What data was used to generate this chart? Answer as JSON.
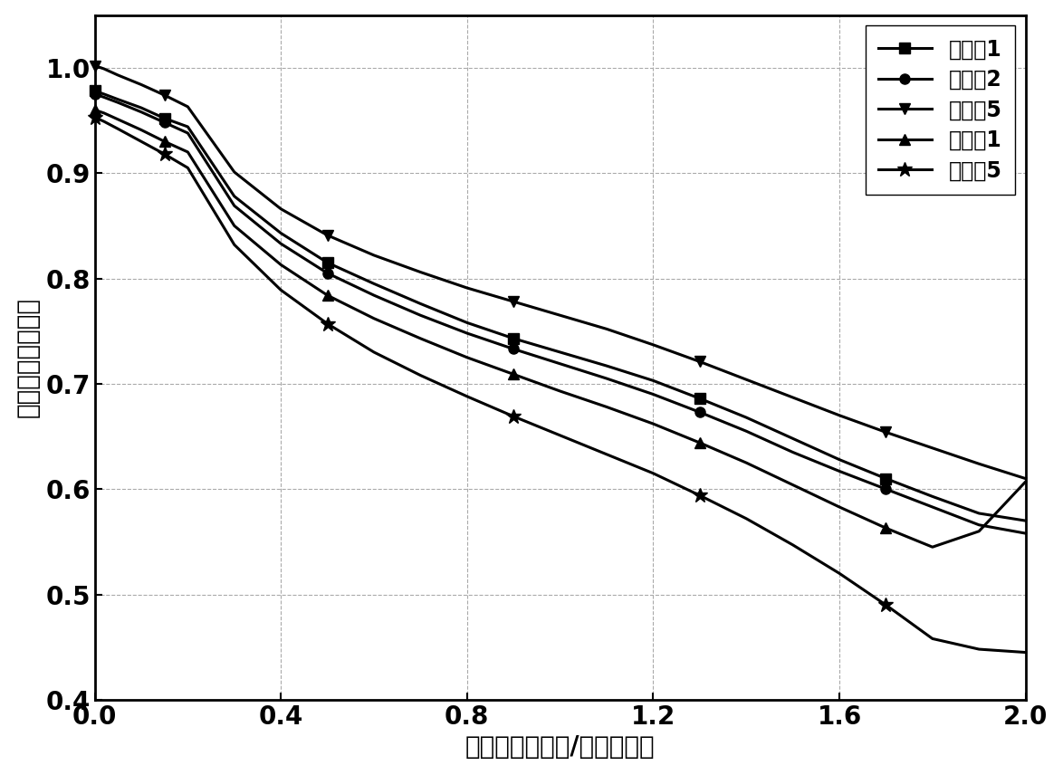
{
  "xlabel": "电流密度（安培/平方厘米）",
  "ylabel": "电池电压（伏特）",
  "xlim": [
    0.0,
    2.0
  ],
  "ylim": [
    0.4,
    1.05
  ],
  "xticks": [
    0.0,
    0.4,
    0.8,
    1.2,
    1.6,
    2.0
  ],
  "yticks": [
    0.4,
    0.5,
    0.6,
    0.7,
    0.8,
    0.9,
    1.0
  ],
  "series": [
    {
      "label": "实施例1",
      "marker": "s",
      "x": [
        0.0,
        0.02,
        0.05,
        0.1,
        0.15,
        0.2,
        0.3,
        0.4,
        0.5,
        0.6,
        0.7,
        0.8,
        0.9,
        1.0,
        1.1,
        1.2,
        1.3,
        1.4,
        1.5,
        1.6,
        1.7,
        1.8,
        1.9,
        2.0
      ],
      "y": [
        0.978,
        0.975,
        0.97,
        0.962,
        0.952,
        0.944,
        0.878,
        0.843,
        0.815,
        0.795,
        0.776,
        0.758,
        0.743,
        0.73,
        0.717,
        0.703,
        0.686,
        0.668,
        0.648,
        0.628,
        0.61,
        0.593,
        0.577,
        0.57
      ]
    },
    {
      "label": "实施例2",
      "marker": "o",
      "x": [
        0.0,
        0.02,
        0.05,
        0.1,
        0.15,
        0.2,
        0.3,
        0.4,
        0.5,
        0.6,
        0.7,
        0.8,
        0.9,
        1.0,
        1.1,
        1.2,
        1.3,
        1.4,
        1.5,
        1.6,
        1.7,
        1.8,
        1.9,
        2.0
      ],
      "y": [
        0.975,
        0.972,
        0.967,
        0.958,
        0.948,
        0.938,
        0.869,
        0.833,
        0.805,
        0.784,
        0.765,
        0.748,
        0.733,
        0.719,
        0.705,
        0.69,
        0.673,
        0.655,
        0.635,
        0.617,
        0.6,
        0.583,
        0.566,
        0.558
      ]
    },
    {
      "label": "实施例5",
      "marker": "v",
      "x": [
        0.0,
        0.02,
        0.05,
        0.1,
        0.15,
        0.2,
        0.3,
        0.4,
        0.5,
        0.6,
        0.7,
        0.8,
        0.9,
        1.0,
        1.1,
        1.2,
        1.3,
        1.4,
        1.5,
        1.6,
        1.7,
        1.8,
        1.9,
        2.0
      ],
      "y": [
        1.002,
        0.999,
        0.993,
        0.984,
        0.974,
        0.963,
        0.901,
        0.866,
        0.841,
        0.822,
        0.806,
        0.791,
        0.778,
        0.765,
        0.752,
        0.737,
        0.721,
        0.704,
        0.687,
        0.67,
        0.654,
        0.639,
        0.624,
        0.61
      ]
    },
    {
      "label": "对比例1",
      "marker": "^",
      "x": [
        0.0,
        0.02,
        0.05,
        0.1,
        0.15,
        0.2,
        0.3,
        0.4,
        0.5,
        0.6,
        0.7,
        0.8,
        0.9,
        1.0,
        1.1,
        1.2,
        1.3,
        1.4,
        1.5,
        1.6,
        1.7,
        1.8,
        1.9,
        2.0
      ],
      "y": [
        0.96,
        0.957,
        0.951,
        0.941,
        0.93,
        0.92,
        0.85,
        0.813,
        0.784,
        0.762,
        0.743,
        0.725,
        0.709,
        0.693,
        0.678,
        0.662,
        0.644,
        0.625,
        0.604,
        0.583,
        0.563,
        0.545,
        0.56,
        0.607
      ]
    },
    {
      "label": "对比例5",
      "marker": "*",
      "x": [
        0.0,
        0.02,
        0.05,
        0.1,
        0.15,
        0.2,
        0.3,
        0.4,
        0.5,
        0.6,
        0.7,
        0.8,
        0.9,
        1.0,
        1.1,
        1.2,
        1.3,
        1.4,
        1.5,
        1.6,
        1.7,
        1.8,
        1.9,
        2.0
      ],
      "y": [
        0.953,
        0.949,
        0.942,
        0.93,
        0.918,
        0.905,
        0.832,
        0.789,
        0.757,
        0.73,
        0.708,
        0.688,
        0.669,
        0.651,
        0.633,
        0.615,
        0.594,
        0.572,
        0.547,
        0.52,
        0.49,
        0.458,
        0.448,
        0.445
      ]
    }
  ],
  "line_color": "#000000",
  "marker_size_default": 8,
  "marker_size_star": 12,
  "line_width": 2.2,
  "grid_color": "#aaaaaa",
  "grid_linestyle": "--",
  "background_color": "#ffffff",
  "legend_fontsize": 17,
  "axis_label_fontsize": 20,
  "tick_fontsize": 20
}
